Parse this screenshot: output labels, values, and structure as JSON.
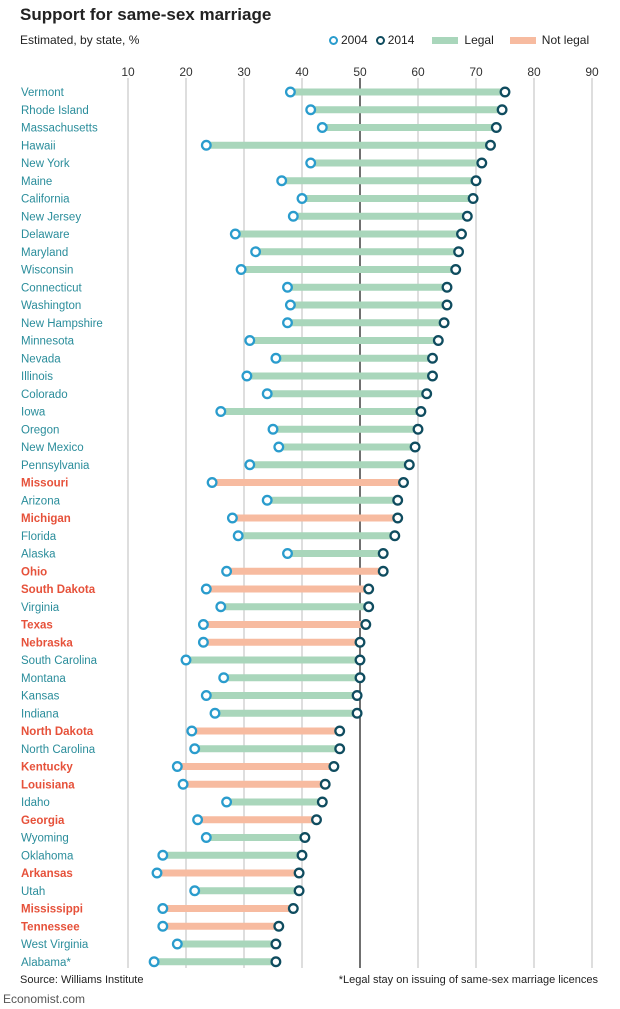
{
  "header": {
    "title": "Support for same-sex marriage",
    "subtitle": "Estimated, by state, %"
  },
  "legend": {
    "y2004": "2004",
    "y2014": "2014",
    "legal": "Legal",
    "not_legal": "Not legal"
  },
  "footer": {
    "source": "Source: Williams Institute",
    "footnote": "*Legal stay on issuing of same-sex marriage licences",
    "brand": "Economist.com"
  },
  "colors": {
    "legal": "#a9d6bb",
    "not_legal": "#f7bba0",
    "marker_2004": "#2a9ccd",
    "marker_2014": "#0f4c5f",
    "label_legal": "#2a8d9b",
    "label_not_legal": "#e6513a",
    "grid": "#c8c8c8",
    "midline": "#333333"
  },
  "chart_data": {
    "type": "dumbbell",
    "x_ticks": [
      10,
      20,
      30,
      40,
      50,
      60,
      70,
      80,
      90
    ],
    "xlim": [
      10,
      90
    ],
    "highlight_line": 50,
    "series": [
      {
        "name": "2004",
        "key": "v2004"
      },
      {
        "name": "2014",
        "key": "v2014"
      }
    ],
    "states": [
      {
        "state": "Vermont",
        "v2004": 38,
        "v2014": 75,
        "legal": true
      },
      {
        "state": "Rhode Island",
        "v2004": 41.5,
        "v2014": 74.5,
        "legal": true
      },
      {
        "state": "Massachusetts",
        "v2004": 43.5,
        "v2014": 73.5,
        "legal": true
      },
      {
        "state": "Hawaii",
        "v2004": 23.5,
        "v2014": 72.5,
        "legal": true
      },
      {
        "state": "New York",
        "v2004": 41.5,
        "v2014": 71,
        "legal": true
      },
      {
        "state": "Maine",
        "v2004": 36.5,
        "v2014": 70,
        "legal": true
      },
      {
        "state": "California",
        "v2004": 40,
        "v2014": 69.5,
        "legal": true
      },
      {
        "state": "New Jersey",
        "v2004": 38.5,
        "v2014": 68.5,
        "legal": true
      },
      {
        "state": "Delaware",
        "v2004": 28.5,
        "v2014": 67.5,
        "legal": true
      },
      {
        "state": "Maryland",
        "v2004": 32,
        "v2014": 67,
        "legal": true
      },
      {
        "state": "Wisconsin",
        "v2004": 29.5,
        "v2014": 66.5,
        "legal": true
      },
      {
        "state": "Connecticut",
        "v2004": 37.5,
        "v2014": 65,
        "legal": true
      },
      {
        "state": "Washington",
        "v2004": 38,
        "v2014": 65,
        "legal": true
      },
      {
        "state": "New Hampshire",
        "v2004": 37.5,
        "v2014": 64.5,
        "legal": true
      },
      {
        "state": "Minnesota",
        "v2004": 31,
        "v2014": 63.5,
        "legal": true
      },
      {
        "state": "Nevada",
        "v2004": 35.5,
        "v2014": 62.5,
        "legal": true
      },
      {
        "state": "Illinois",
        "v2004": 30.5,
        "v2014": 62.5,
        "legal": true
      },
      {
        "state": "Colorado",
        "v2004": 34,
        "v2014": 61.5,
        "legal": true
      },
      {
        "state": "Iowa",
        "v2004": 26,
        "v2014": 60.5,
        "legal": true
      },
      {
        "state": "Oregon",
        "v2004": 35,
        "v2014": 60,
        "legal": true
      },
      {
        "state": "New Mexico",
        "v2004": 36,
        "v2014": 59.5,
        "legal": true
      },
      {
        "state": "Pennsylvania",
        "v2004": 31,
        "v2014": 58.5,
        "legal": true
      },
      {
        "state": "Missouri",
        "v2004": 24.5,
        "v2014": 57.5,
        "legal": false
      },
      {
        "state": "Arizona",
        "v2004": 34,
        "v2014": 56.5,
        "legal": true
      },
      {
        "state": "Michigan",
        "v2004": 28,
        "v2014": 56.5,
        "legal": false
      },
      {
        "state": "Florida",
        "v2004": 29,
        "v2014": 56,
        "legal": true
      },
      {
        "state": "Alaska",
        "v2004": 37.5,
        "v2014": 54,
        "legal": true
      },
      {
        "state": "Ohio",
        "v2004": 27,
        "v2014": 54,
        "legal": false
      },
      {
        "state": "South Dakota",
        "v2004": 23.5,
        "v2014": 51.5,
        "legal": false
      },
      {
        "state": "Virginia",
        "v2004": 26,
        "v2014": 51.5,
        "legal": true
      },
      {
        "state": "Texas",
        "v2004": 23,
        "v2014": 51,
        "legal": false
      },
      {
        "state": "Nebraska",
        "v2004": 23,
        "v2014": 50,
        "legal": false
      },
      {
        "state": "South Carolina",
        "v2004": 20,
        "v2014": 50,
        "legal": true
      },
      {
        "state": "Montana",
        "v2004": 26.5,
        "v2014": 50,
        "legal": true
      },
      {
        "state": "Kansas",
        "v2004": 23.5,
        "v2014": 49.5,
        "legal": true
      },
      {
        "state": "Indiana",
        "v2004": 25,
        "v2014": 49.5,
        "legal": true
      },
      {
        "state": "North Dakota",
        "v2004": 21,
        "v2014": 46.5,
        "legal": false
      },
      {
        "state": "North Carolina",
        "v2004": 21.5,
        "v2014": 46.5,
        "legal": true
      },
      {
        "state": "Kentucky",
        "v2004": 18.5,
        "v2014": 45.5,
        "legal": false
      },
      {
        "state": "Louisiana",
        "v2004": 19.5,
        "v2014": 44,
        "legal": false
      },
      {
        "state": "Idaho",
        "v2004": 27,
        "v2014": 43.5,
        "legal": true
      },
      {
        "state": "Georgia",
        "v2004": 22,
        "v2014": 42.5,
        "legal": false
      },
      {
        "state": "Wyoming",
        "v2004": 23.5,
        "v2014": 40.5,
        "legal": true
      },
      {
        "state": "Oklahoma",
        "v2004": 16,
        "v2014": 40,
        "legal": true
      },
      {
        "state": "Arkansas",
        "v2004": 15,
        "v2014": 39.5,
        "legal": false
      },
      {
        "state": "Utah",
        "v2004": 21.5,
        "v2014": 39.5,
        "legal": true
      },
      {
        "state": "Mississippi",
        "v2004": 16,
        "v2014": 38.5,
        "legal": false
      },
      {
        "state": "Tennessee",
        "v2004": 16,
        "v2014": 36,
        "legal": false
      },
      {
        "state": "West Virginia",
        "v2004": 18.5,
        "v2014": 35.5,
        "legal": true
      },
      {
        "state": "Alabama*",
        "v2004": 14.5,
        "v2014": 35.5,
        "legal": true
      }
    ]
  }
}
